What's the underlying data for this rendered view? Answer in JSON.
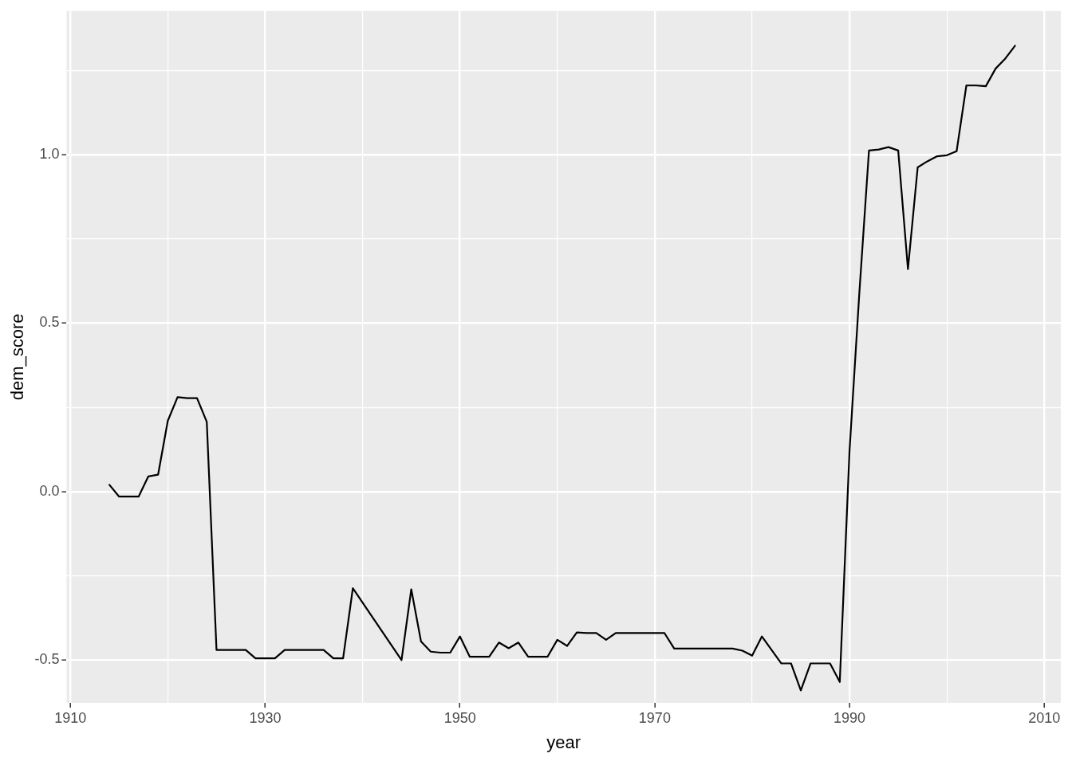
{
  "chart_data": {
    "type": "line",
    "xlabel": "year",
    "ylabel": "dem_score",
    "x": [
      1914,
      1915,
      1916,
      1917,
      1918,
      1919,
      1920,
      1921,
      1922,
      1923,
      1924,
      1925,
      1926,
      1927,
      1928,
      1929,
      1930,
      1931,
      1932,
      1933,
      1934,
      1935,
      1936,
      1937,
      1938,
      1939,
      1944,
      1945,
      1946,
      1947,
      1948,
      1949,
      1950,
      1951,
      1952,
      1953,
      1954,
      1955,
      1956,
      1957,
      1958,
      1959,
      1960,
      1961,
      1962,
      1963,
      1964,
      1965,
      1966,
      1967,
      1968,
      1969,
      1970,
      1971,
      1972,
      1973,
      1974,
      1975,
      1976,
      1977,
      1978,
      1979,
      1980,
      1981,
      1982,
      1983,
      1984,
      1985,
      1986,
      1987,
      1988,
      1989,
      1990,
      1991,
      1992,
      1993,
      1994,
      1995,
      1996,
      1997,
      1998,
      1999,
      2000,
      2001,
      2002,
      2003,
      2004,
      2005,
      2006,
      2007
    ],
    "series": [
      {
        "color": "#000000",
        "values": [
          0.02,
          -0.015,
          -0.015,
          -0.015,
          0.045,
          0.05,
          0.21,
          0.28,
          0.277,
          0.277,
          0.207,
          -0.47,
          -0.47,
          -0.47,
          -0.47,
          -0.495,
          -0.495,
          -0.495,
          -0.47,
          -0.47,
          -0.47,
          -0.47,
          -0.47,
          -0.495,
          -0.495,
          -0.287,
          -0.5,
          -0.29,
          -0.445,
          -0.475,
          -0.478,
          -0.478,
          -0.43,
          -0.49,
          -0.49,
          -0.49,
          -0.448,
          -0.465,
          -0.448,
          -0.49,
          -0.49,
          -0.49,
          -0.44,
          -0.458,
          -0.418,
          -0.42,
          -0.42,
          -0.44,
          -0.42,
          -0.42,
          -0.42,
          -0.42,
          -0.42,
          -0.42,
          -0.466,
          -0.466,
          -0.466,
          -0.466,
          -0.466,
          -0.466,
          -0.466,
          -0.472,
          -0.487,
          -0.43,
          -0.47,
          -0.51,
          -0.51,
          -0.59,
          -0.51,
          -0.51,
          -0.51,
          -0.565,
          0.12,
          0.585,
          1.012,
          1.015,
          1.022,
          1.012,
          0.66,
          0.962,
          0.98,
          0.995,
          0.998,
          1.01,
          1.205,
          1.205,
          1.203,
          1.255,
          1.285,
          1.323
        ]
      }
    ],
    "xlim": [
      1909.6,
      2011.7
    ],
    "ylim": [
      -0.627,
      1.426
    ],
    "xticks": [
      1910,
      {
        "value": 1920,
        "label": null
      },
      1930,
      {
        "value": 1940,
        "label": null
      },
      1950,
      {
        "value": 1960,
        "label": null
      },
      1970,
      {
        "value": 1980,
        "label": null
      },
      1990,
      {
        "value": 2000,
        "label": null
      },
      2010
    ],
    "yticks": [
      {
        "value": -0.5,
        "label": "-0.5"
      },
      {
        "value": -0.25,
        "label": null
      },
      {
        "value": 0,
        "label": "0.0"
      },
      {
        "value": 0.25,
        "label": null
      },
      {
        "value": 0.5,
        "label": "0.5"
      },
      {
        "value": 0.75,
        "label": null
      },
      {
        "value": 1,
        "label": "1.0"
      },
      {
        "value": 1.25,
        "label": null
      }
    ],
    "grid": true,
    "legend": false,
    "marker": "none",
    "line_style": "solid"
  }
}
